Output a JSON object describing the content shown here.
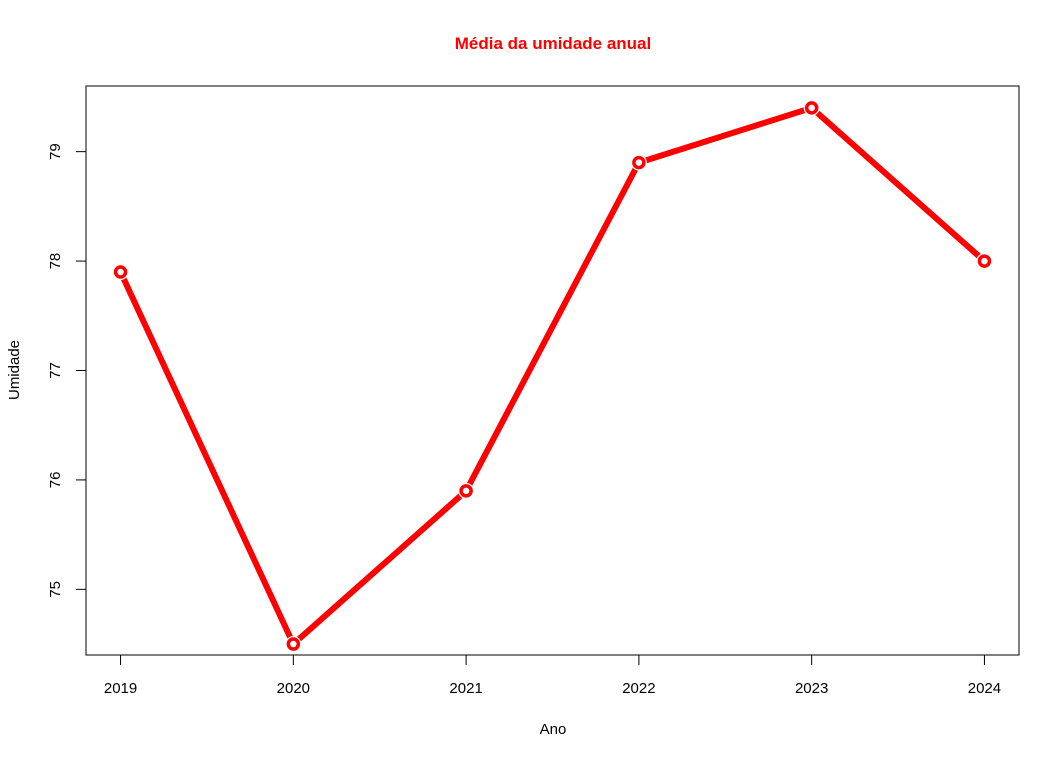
{
  "chart_data": {
    "type": "line",
    "title": "Média da umidade anual",
    "xlabel": "Ano",
    "ylabel": "Umidade",
    "categories": [
      "2019",
      "2020",
      "2021",
      "2022",
      "2023",
      "2024"
    ],
    "series": [
      {
        "values": [
          77.9,
          74.5,
          75.9,
          78.9,
          79.4,
          78.0
        ]
      }
    ],
    "y_ticks": [
      "75",
      "76",
      "77",
      "78",
      "79"
    ],
    "ylim": [
      74.4,
      79.6
    ],
    "grid": false,
    "colors": {
      "series": "#ff0000",
      "title": "#ff0000",
      "axis": "#000000"
    }
  }
}
